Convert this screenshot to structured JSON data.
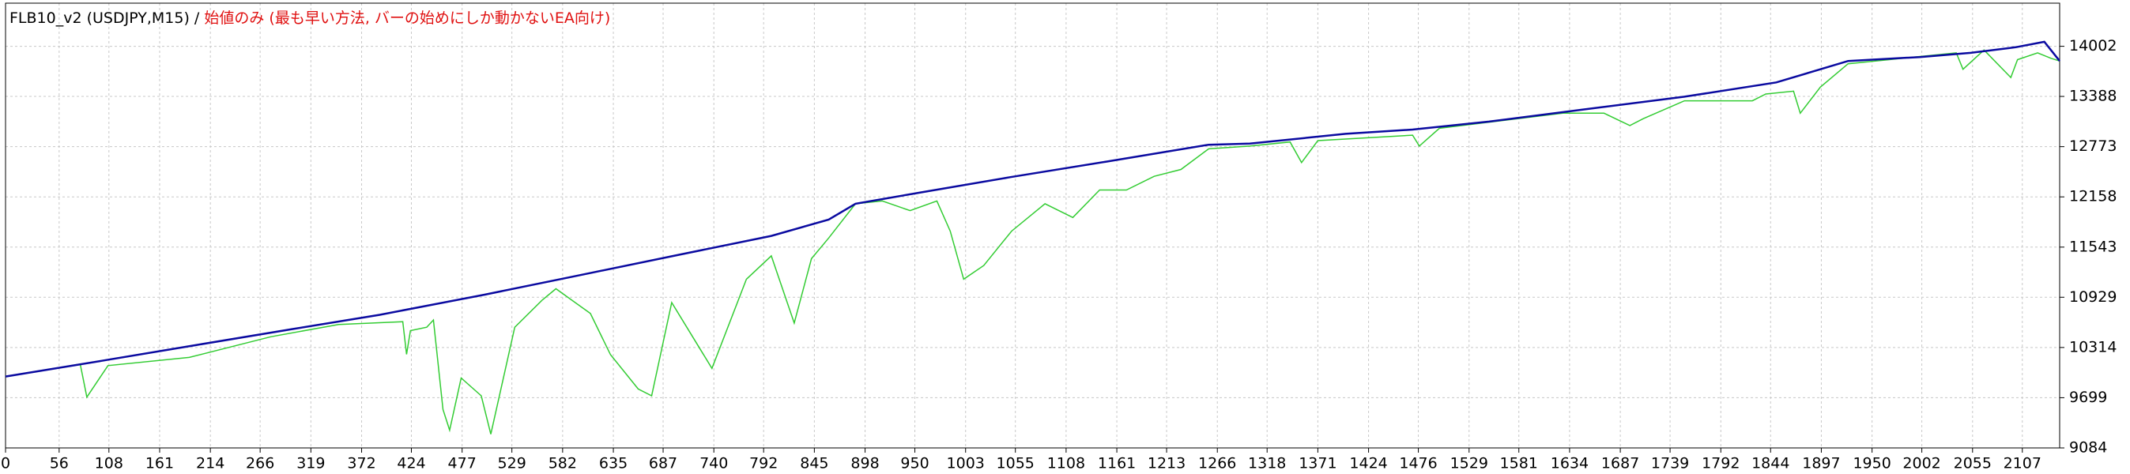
{
  "chart_data": {
    "type": "line",
    "title": "FLB10_v2 (USDJPY,M15) /",
    "subtitle": "始値のみ (最も早い方法, バーの始めにしか動かないEA向け)",
    "xlim": [
      0,
      2146
    ],
    "ylim": [
      9084,
      14530
    ],
    "xticks": [
      0,
      56,
      108,
      161,
      214,
      266,
      319,
      372,
      424,
      477,
      529,
      582,
      635,
      687,
      740,
      792,
      845,
      898,
      950,
      1003,
      1055,
      1108,
      1161,
      1213,
      1266,
      1318,
      1371,
      1424,
      1476,
      1529,
      1581,
      1634,
      1687,
      1739,
      1792,
      1844,
      1897,
      1950,
      2002,
      2055,
      2107
    ],
    "yticks": [
      9084,
      9699,
      10314,
      10929,
      11543,
      12158,
      12773,
      13388,
      14002
    ],
    "grid": true,
    "series": [
      {
        "color": "#33cc33",
        "x": [
          0,
          78,
          85,
          107,
          192,
          277,
          348,
          415,
          419,
          423,
          440,
          447,
          457,
          464,
          476,
          497,
          507,
          532,
          561,
          575,
          611,
          632,
          661,
          675,
          696,
          738,
          774,
          800,
          824,
          842,
          860,
          888,
          916,
          945,
          973,
          987,
          1001,
          1022,
          1051,
          1086,
          1115,
          1143,
          1171,
          1200,
          1228,
          1257,
          1300,
          1342,
          1354,
          1371,
          1470,
          1477,
          1498,
          1627,
          1670,
          1697,
          1711,
          1754,
          1825,
          1839,
          1868,
          1875,
          1896,
          1925,
          2038,
          2045,
          2067,
          2095,
          2102,
          2123,
          2137,
          2146
        ],
        "values": [
          9958,
          10110,
          9706,
          10092,
          10193,
          10445,
          10596,
          10630,
          10230,
          10520,
          10562,
          10650,
          9554,
          9302,
          9940,
          9722,
          9252,
          10562,
          10898,
          11033,
          10730,
          10226,
          9806,
          9722,
          10864,
          10058,
          11150,
          11436,
          10613,
          11402,
          11654,
          12074,
          12108,
          11990,
          12108,
          11738,
          11150,
          11318,
          11738,
          12074,
          11906,
          12242,
          12242,
          12410,
          12494,
          12746,
          12780,
          12830,
          12578,
          12847,
          12914,
          12780,
          12998,
          13183,
          13183,
          13032,
          13116,
          13334,
          13334,
          13418,
          13452,
          13183,
          13502,
          13788,
          13922,
          13720,
          13956,
          13620,
          13838,
          13922,
          13855,
          13822
        ]
      },
      {
        "color": "#0a0aa0",
        "x": [
          0,
          100,
          200,
          300,
          391,
          500,
          600,
          700,
          800,
          860,
          888,
          950,
          1050,
          1150,
          1257,
          1300,
          1400,
          1470,
          1550,
          1650,
          1754,
          1850,
          1925,
          2000,
          2053,
          2100,
          2130,
          2146
        ],
        "values": [
          9958,
          10150,
          10345,
          10540,
          10714,
          10960,
          11200,
          11440,
          11680,
          11880,
          12074,
          12200,
          12400,
          12590,
          12797,
          12810,
          12930,
          12982,
          13080,
          13230,
          13385,
          13560,
          13822,
          13870,
          13922,
          13990,
          14057,
          13822
        ]
      }
    ]
  }
}
